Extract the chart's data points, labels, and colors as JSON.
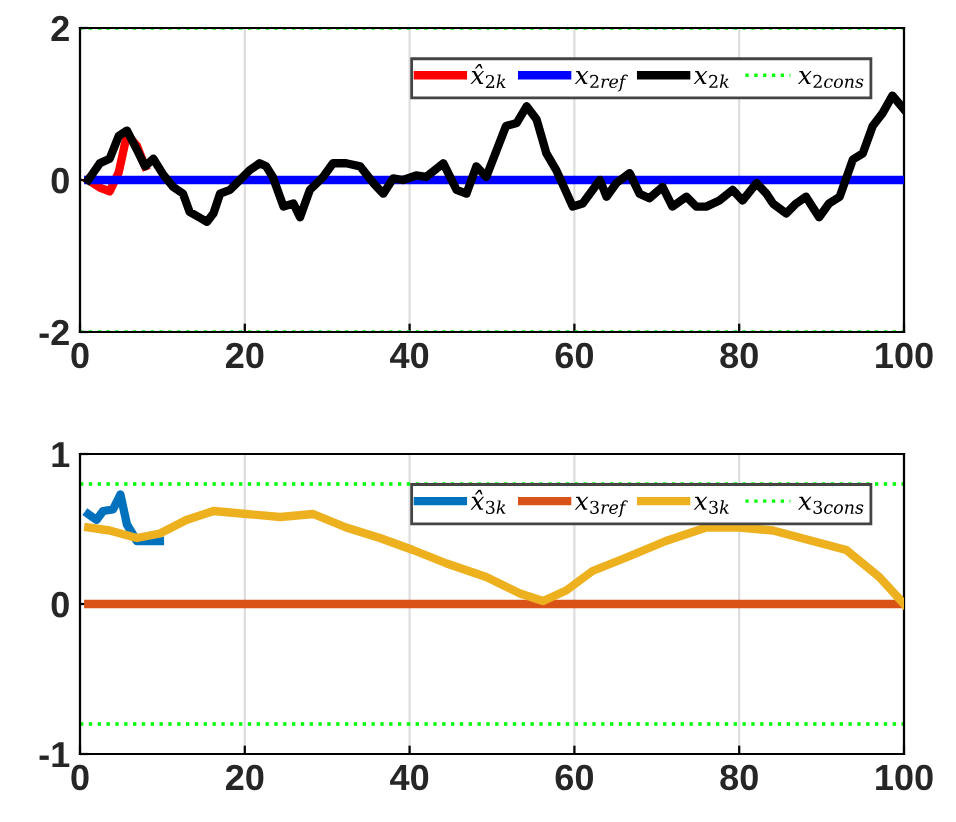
{
  "chart_data": [
    {
      "type": "line",
      "xlim": [
        0,
        100
      ],
      "xticks": [
        0,
        20,
        40,
        60,
        80,
        100
      ],
      "ylim": [
        -2,
        2
      ],
      "yticks": [
        -2,
        0,
        2
      ],
      "grid": "x",
      "legend": "top right",
      "line_style": "solid",
      "series": [
        {
          "name": "x̂$_{2k}$",
          "color": "#ff0000",
          "x": [
            1,
            2.4,
            3.6,
            4.7,
            5.7,
            6.9,
            7.9
          ],
          "values": [
            0,
            -0.1,
            -0.15,
            0.1,
            0.6,
            0.45,
            0.18
          ]
        },
        {
          "name": "x$_{2ref}$",
          "color": "#0000ff",
          "x": [
            1,
            100
          ],
          "values": [
            0,
            0
          ]
        },
        {
          "name": "x$_{2k}$",
          "color": "#000000",
          "x": [
            1,
            2.4,
            3.6,
            4.7,
            5.7,
            6.9,
            7.9,
            8.9,
            10.1,
            11.3,
            12.5,
            13.3,
            14.6,
            15.4,
            16.2,
            17.0,
            18.2,
            19.4,
            20.6,
            21.8,
            22.6,
            23.4,
            24.7,
            25.9,
            26.7,
            27.9,
            29.5,
            30.7,
            32.3,
            34.0,
            35.6,
            36.8,
            38.0,
            39.2,
            40.8,
            42.0,
            44.1,
            45.7,
            46.9,
            48.1,
            49.3,
            51.7,
            53.0,
            54.2,
            55.4,
            56.6,
            57.8,
            59.8,
            61.0,
            63.1,
            63.9,
            65.1,
            66.7,
            67.9,
            69.1,
            70.7,
            71.9,
            73.6,
            74.8,
            76.0,
            77.6,
            79.2,
            80.4,
            82.1,
            83.3,
            84.1,
            85.7,
            86.9,
            88.1,
            89.7,
            90.9,
            92.2,
            93.8,
            95.0,
            96.2,
            97.4,
            98.6,
            100
          ],
          "values": [
            0,
            0.22,
            0.28,
            0.58,
            0.65,
            0.4,
            0.18,
            0.28,
            0.07,
            -0.09,
            -0.18,
            -0.42,
            -0.5,
            -0.55,
            -0.44,
            -0.18,
            -0.13,
            0,
            0.13,
            0.22,
            0.18,
            0.04,
            -0.35,
            -0.31,
            -0.49,
            -0.13,
            0.04,
            0.22,
            0.22,
            0.18,
            -0.04,
            -0.18,
            0.02,
            0,
            0.06,
            0.04,
            0.22,
            -0.13,
            -0.18,
            0.18,
            0.04,
            0.71,
            0.75,
            0.97,
            0.8,
            0.35,
            0.13,
            -0.35,
            -0.31,
            0,
            -0.22,
            -0.04,
            0.09,
            -0.18,
            -0.24,
            -0.09,
            -0.35,
            -0.22,
            -0.35,
            -0.35,
            -0.27,
            -0.13,
            -0.27,
            -0.04,
            -0.18,
            -0.31,
            -0.44,
            -0.31,
            -0.22,
            -0.49,
            -0.31,
            -0.22,
            0.27,
            0.35,
            0.71,
            0.88,
            1.11,
            0.93
          ]
        },
        {
          "name": "x$_{2cons}$",
          "color": "#00ff00",
          "line_style": "dotted",
          "x": [
            0,
            100
          ],
          "values": [
            2,
            2
          ]
        },
        {
          "color": "#00ff00",
          "line_style": "dotted",
          "x": [
            0,
            100
          ],
          "values": [
            -2,
            -2
          ]
        }
      ]
    },
    {
      "type": "line",
      "xlim": [
        0,
        100
      ],
      "xticks": [
        0,
        20,
        40,
        60,
        80,
        100
      ],
      "ylim": [
        -1,
        1
      ],
      "yticks": [
        -1,
        0,
        1
      ],
      "grid": "x",
      "legend": "top right",
      "line_style": "solid",
      "series": [
        {
          "name": "x̂$_{3k}$",
          "color": "#0072bd",
          "x": [
            1,
            2.0,
            2.8,
            4.0,
            4.9,
            5.7,
            6.9,
            9.7
          ],
          "values": [
            0.6,
            0.56,
            0.62,
            0.63,
            0.73,
            0.53,
            0.42,
            0.42
          ]
        },
        {
          "name": "x$_{3ref}$",
          "color": "#d95319",
          "x": [
            1,
            100
          ],
          "values": [
            0,
            0
          ]
        },
        {
          "name": "x$_{3k}$",
          "color": "#edb120",
          "x": [
            1,
            3.6,
            6.9,
            9.7,
            12.9,
            16.2,
            20.2,
            24.3,
            28.3,
            32.3,
            36.4,
            40.4,
            44.5,
            49.3,
            53.4,
            56.2,
            59.0,
            62.2,
            66.3,
            71.1,
            76.0,
            80.0,
            84.1,
            88.9,
            93.0,
            97.0,
            100
          ],
          "values": [
            0.51,
            0.49,
            0.44,
            0.47,
            0.56,
            0.62,
            0.6,
            0.58,
            0.6,
            0.51,
            0.44,
            0.36,
            0.27,
            0.18,
            0.07,
            0.02,
            0.09,
            0.22,
            0.31,
            0.42,
            0.51,
            0.51,
            0.49,
            0.42,
            0.36,
            0.18,
            0
          ]
        },
        {
          "name": "x$_{3cons}$",
          "color": "#00ff00",
          "line_style": "dotted",
          "x": [
            0,
            100
          ],
          "values": [
            0.8,
            0.8
          ]
        },
        {
          "color": "#00ff00",
          "line_style": "dotted",
          "x": [
            0,
            100
          ],
          "values": [
            -0.8,
            -0.8
          ]
        }
      ]
    }
  ]
}
